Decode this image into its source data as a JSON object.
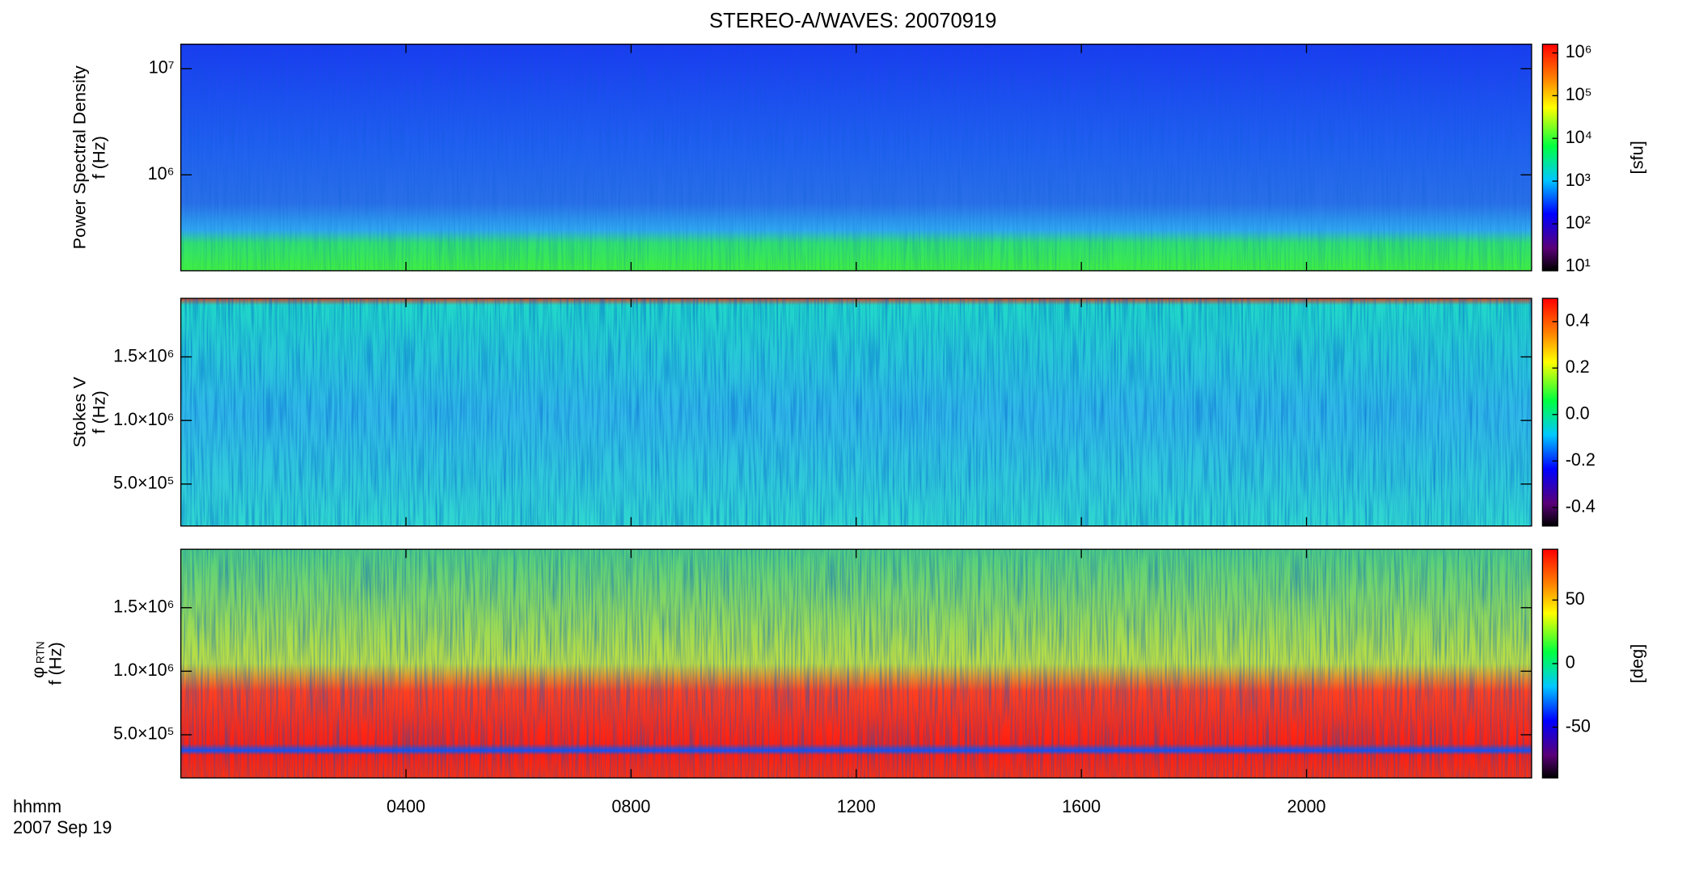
{
  "title": "STEREO-A/WAVES: 20070919",
  "x_axis": {
    "label": "hhmm",
    "date": "2007 Sep 19",
    "xlim": [
      0,
      24
    ],
    "xticks": [
      {
        "value": 4,
        "label": "0400"
      },
      {
        "value": 8,
        "label": "0800"
      },
      {
        "value": 12,
        "label": "1200"
      },
      {
        "value": 16,
        "label": "1600"
      },
      {
        "value": 20,
        "label": "2000"
      }
    ]
  },
  "chart_data": [
    {
      "type": "heatmap",
      "ylabel": [
        "Power Spectral Density",
        "f (Hz)"
      ],
      "ylog": true,
      "ylim": [
        125000,
        17000000
      ],
      "yticks": [
        {
          "value": 1000000,
          "label": "10⁶"
        },
        {
          "value": 10000000,
          "label": "10⁷"
        }
      ],
      "clog": true,
      "clim": [
        8,
        1600000
      ],
      "cticks": [
        {
          "value": 10,
          "label": "10¹"
        },
        {
          "value": 100,
          "label": "10²"
        },
        {
          "value": 1000,
          "label": "10³"
        },
        {
          "value": 10000,
          "label": "10⁴"
        },
        {
          "value": 100000,
          "label": "10⁵"
        },
        {
          "value": 1000000,
          "label": "10⁶"
        }
      ],
      "clabel": "[sfu]"
    },
    {
      "type": "heatmap",
      "ylabel": [
        "Stokes V",
        "f (Hz)"
      ],
      "ylog": false,
      "ylim": [
        170000,
        1960000
      ],
      "yticks": [
        {
          "value": 500000,
          "label": "5.0×10⁵"
        },
        {
          "value": 1000000,
          "label": "1.0×10⁶"
        },
        {
          "value": 1500000,
          "label": "1.5×10⁶"
        }
      ],
      "clog": false,
      "clim": [
        -0.48,
        0.5
      ],
      "cticks": [
        {
          "value": -0.4,
          "label": "-0.4"
        },
        {
          "value": -0.2,
          "label": "-0.2"
        },
        {
          "value": 0,
          "label": "0.0"
        },
        {
          "value": 0.2,
          "label": "0.2"
        },
        {
          "value": 0.4,
          "label": "0.4"
        }
      ]
    },
    {
      "type": "heatmap",
      "ylabel": [
        "φ",
        "RTN",
        "f (Hz)"
      ],
      "ylog": false,
      "ylim": [
        160000,
        1960000
      ],
      "yticks": [
        {
          "value": 500000,
          "label": "5.0×10⁵"
        },
        {
          "value": 1000000,
          "label": "1.0×10⁶"
        },
        {
          "value": 1500000,
          "label": "1.5×10⁶"
        }
      ],
      "clog": false,
      "clim": [
        -90,
        90
      ],
      "cticks": [
        -50,
        0,
        50
      ],
      "clabel": "[deg]"
    }
  ]
}
